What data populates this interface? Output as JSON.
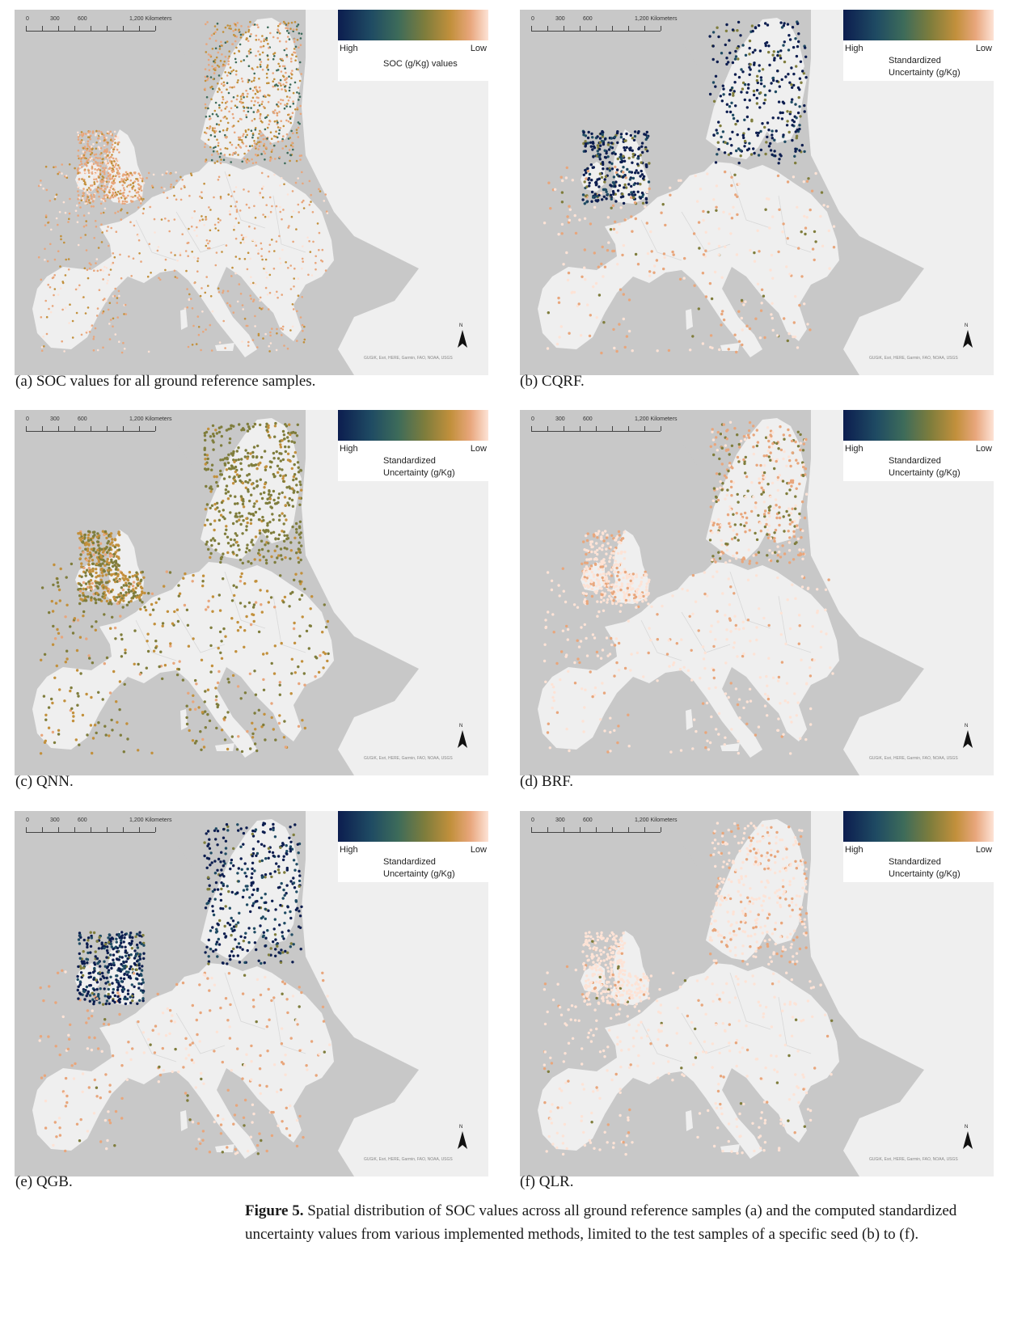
{
  "scale_labels": [
    "0",
    "300",
    "600",
    "1,200 Kilometers"
  ],
  "attribution": "GUGiK, Esri, HERE, Garmin, FAO, NOAA, USGS",
  "north_label": "N",
  "legend": {
    "high": "High",
    "low": "Low"
  },
  "colors": {
    "scale": [
      "#0c1d4f",
      "#1f4b63",
      "#3d6b5a",
      "#7f7d3c",
      "#c2903c",
      "#e8a67c",
      "#fde3d6"
    ],
    "sea": "#c8c8c8",
    "land": "#efefef"
  },
  "panels": [
    {
      "id": "a",
      "caption": "(a) SOC values for all ground reference samples.",
      "legend_title": "SOC (g/Kg) values",
      "icon": "map-icon"
    },
    {
      "id": "b",
      "caption": "(b) CQRF.",
      "legend_title": "Standardized\nUncertainty (g/Kg)",
      "icon": "map-icon"
    },
    {
      "id": "c",
      "caption": "(c) QNN.",
      "legend_title": "Standardized\nUncertainty (g/Kg)",
      "icon": "map-icon"
    },
    {
      "id": "d",
      "caption": "(d) BRF.",
      "legend_title": "Standardized\nUncertainty (g/Kg)",
      "icon": "map-icon"
    },
    {
      "id": "e",
      "caption": "(e) QGB.",
      "legend_title": "Standardized\nUncertainty (g/Kg)",
      "icon": "map-icon"
    },
    {
      "id": "f",
      "caption": "(f) QLR.",
      "legend_title": "Standardized\nUncertainty (g/Kg)",
      "icon": "map-icon"
    }
  ],
  "figure_caption": {
    "label": "Figure 5.",
    "text": " Spatial distribution of SOC values across all ground reference samples (a) and the computed standardized uncertainty values from various implemented methods, limited to the test samples of a specific seed (b) to (f)."
  }
}
